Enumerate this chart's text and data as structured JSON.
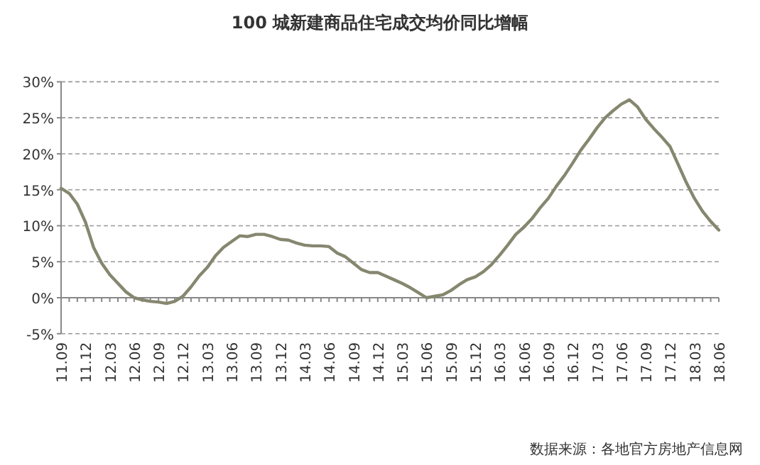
{
  "chart_data": {
    "type": "line",
    "title": "100 城新建商品住宅成交均价同比增幅",
    "categories": [
      "11.09",
      null,
      null,
      "11.12",
      null,
      null,
      "12.03",
      null,
      null,
      "12.06",
      null,
      null,
      "12.09",
      null,
      null,
      "12.12",
      null,
      null,
      "13.03",
      null,
      null,
      "13.06",
      null,
      null,
      "13.09",
      null,
      null,
      "13.12",
      null,
      null,
      "14.03",
      null,
      null,
      "14.06",
      null,
      null,
      "14.09",
      null,
      null,
      "14.12",
      null,
      null,
      "15.03",
      null,
      null,
      "15.06",
      null,
      null,
      "15.09",
      null,
      null,
      "15.12",
      null,
      null,
      "16.03",
      null,
      null,
      "16.06",
      null,
      null,
      "16.09",
      null,
      null,
      "16.12",
      null,
      null,
      "17.03",
      null,
      null,
      "17.06",
      null,
      null,
      "17.09",
      null,
      null,
      "17.12",
      null,
      null,
      "18.03",
      null,
      null,
      "18.06"
    ],
    "series": [
      {
        "color": "#86876f",
        "values": [
          15.2,
          14.5,
          13,
          10.5,
          7,
          4.8,
          3.2,
          2,
          0.8,
          0,
          -0.3,
          -0.5,
          -0.6,
          -0.8,
          -0.5,
          0.2,
          1.5,
          3,
          4.2,
          5.8,
          7,
          7.8,
          8.6,
          8.5,
          8.8,
          8.8,
          8.5,
          8.1,
          8,
          7.6,
          7.3,
          7.2,
          7.2,
          7.1,
          6.2,
          5.7,
          4.8,
          3.9,
          3.5,
          3.5,
          3,
          2.5,
          2,
          1.4,
          0.7,
          0,
          0.2,
          0.4,
          1,
          1.8,
          2.5,
          2.9,
          3.6,
          4.6,
          5.9,
          7.3,
          8.8,
          9.8,
          11,
          12.5,
          13.8,
          15.5,
          17,
          18.7,
          20.5,
          22,
          23.6,
          25,
          26,
          26.9,
          27.5,
          26.5,
          24.8,
          23.5,
          22.3,
          21,
          18.5,
          16,
          13.8,
          12,
          10.6,
          9.4
        ]
      }
    ],
    "ylim": [
      -5,
      30
    ],
    "yticks": [
      {
        "value": -5,
        "label": "-5%"
      },
      {
        "value": 0,
        "label": "0%"
      },
      {
        "value": 5,
        "label": "5%"
      },
      {
        "value": 10,
        "label": "10%"
      },
      {
        "value": 15,
        "label": "15%"
      },
      {
        "value": 20,
        "label": "20%"
      },
      {
        "value": 25,
        "label": "25%"
      },
      {
        "value": 30,
        "label": "30%"
      }
    ],
    "grid": "y",
    "line_style": "solid",
    "annotations": [
      "数据来源：各地官方房地产信息网"
    ]
  }
}
